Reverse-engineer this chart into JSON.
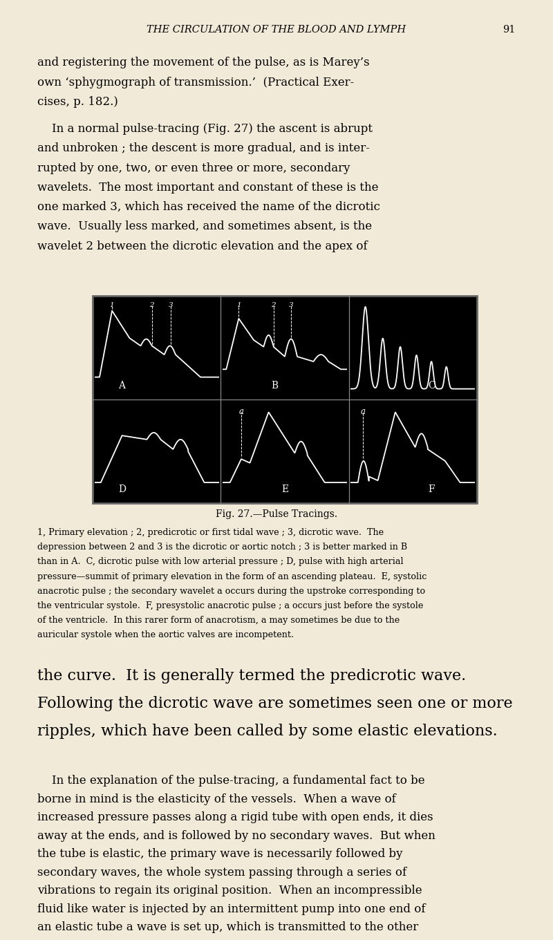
{
  "bg_color": "#f2ead8",
  "header_text": "THE CIRCULATION OF THE BLOOD AND LYMPH",
  "header_page": "91",
  "fig_caption": "Fig. 27.—Pulse Tracings.",
  "lm": 0.068,
  "rm": 0.932,
  "body_fs": 12.0,
  "small_fs": 9.2,
  "large_fs": 16.0,
  "header_fs": 10.5,
  "cap_fs": 10.0
}
